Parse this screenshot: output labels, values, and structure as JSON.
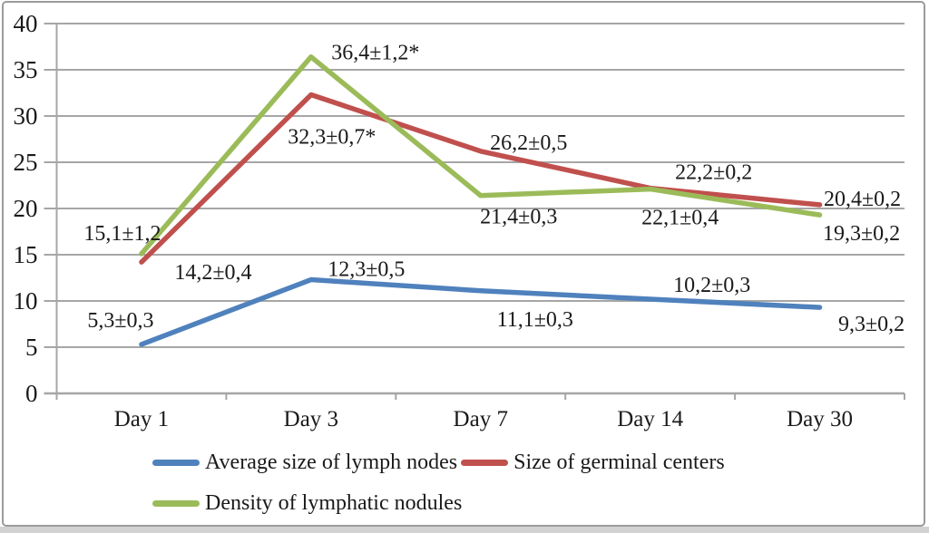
{
  "chart_data": {
    "type": "line",
    "categories": [
      "Day 1",
      "Day 3",
      "Day 7",
      "Day 14",
      "Day 30"
    ],
    "series": [
      {
        "name": "Average size of lymph nodes",
        "color": "#4F81BD",
        "values": [
          5.3,
          12.3,
          11.1,
          10.2,
          9.3
        ],
        "labels": [
          "5,3±0,3",
          "12,3±0,5",
          "11,1±0,3",
          "10,2±0,3",
          "9,3±0,2"
        ],
        "label_offsets": [
          [
            -23,
            -27
          ],
          [
            61,
            -12
          ],
          [
            60,
            31
          ],
          [
            68,
            -16
          ],
          [
            57,
            18
          ]
        ]
      },
      {
        "name": "Size of germinal centers",
        "color": "#C0504D",
        "values": [
          14.2,
          32.3,
          26.2,
          22.2,
          20.4
        ],
        "labels": [
          "14,2±0,4",
          "32,3±0,7*",
          "26,2±0,5",
          "22,2±0,2",
          "20,4±0,2"
        ],
        "label_offsets": [
          [
            79,
            11
          ],
          [
            23,
            46
          ],
          [
            53,
            -10
          ],
          [
            70,
            -18
          ],
          [
            47,
            -7
          ]
        ]
      },
      {
        "name": "Density of lymphatic nodules",
        "color": "#9BBB59",
        "values": [
          15.1,
          36.4,
          21.4,
          22.1,
          19.3
        ],
        "labels": [
          "15,1±1,2",
          "36,4±1,2*",
          "21,4±0,3",
          "22,1±0,4",
          "19,3±0,2"
        ],
        "label_offsets": [
          [
            -21,
            -23
          ],
          [
            71,
            -5
          ],
          [
            42,
            23
          ],
          [
            33,
            31
          ],
          [
            46,
            20
          ]
        ]
      }
    ],
    "ylim": [
      0,
      40
    ],
    "ytick_step": 5,
    "yticks": [
      0,
      5,
      10,
      15,
      20,
      25,
      30,
      35,
      40
    ],
    "grid": true,
    "legend_position": "bottom",
    "axis_color": "#a6a6a6",
    "text_color": "#1a1a1a",
    "title": "",
    "xlabel": "",
    "ylabel": ""
  },
  "legend": {
    "rows": [
      [
        0,
        1
      ],
      [
        2
      ]
    ]
  }
}
